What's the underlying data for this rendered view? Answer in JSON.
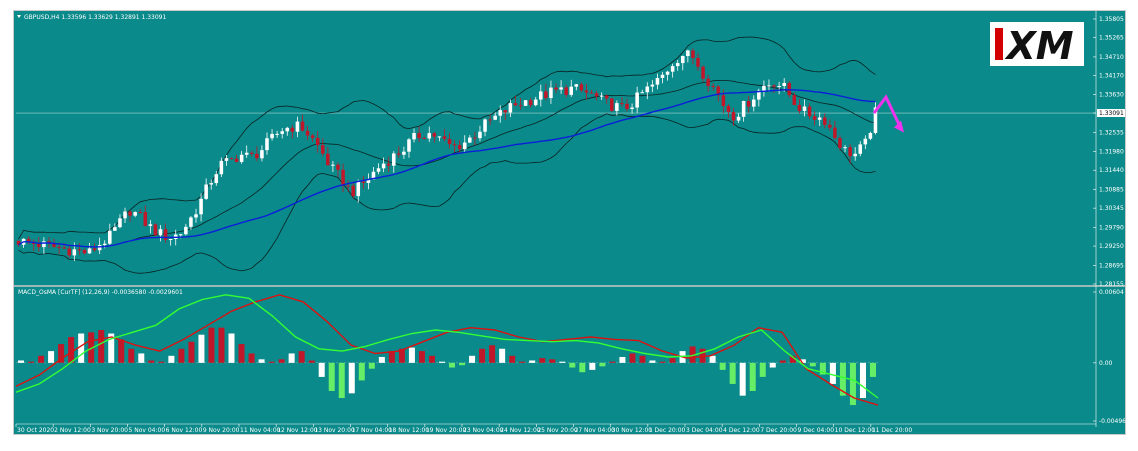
{
  "header": {
    "main_label": "GBPUSD,H4  1.33596 1.33629 1.32891 1.33091",
    "macd_label": "MACD_OsMA [CurTF] (12,26,9) -0.0036580 -0.0029601"
  },
  "logo": {
    "text": "XM"
  },
  "chart_data": [
    {
      "type": "candlestick",
      "symbol": "GBPUSD",
      "timeframe": "H4",
      "ohlc_last": {
        "open": 1.33596,
        "high": 1.33629,
        "low": 1.32891,
        "close": 1.33091
      },
      "current_price_label": "1.33091",
      "ylim": [
        1.28155,
        1.35805
      ],
      "y_ticks": [
        "1.35805",
        "1.35265",
        "1.34710",
        "1.34170",
        "1.33630",
        "1.33091",
        "1.32535",
        "1.31980",
        "1.31440",
        "1.30885",
        "1.30345",
        "1.29790",
        "1.29250",
        "1.28695",
        "1.28155"
      ],
      "x_ticks": [
        "30 Oct 2020",
        "2 Nov 12:00",
        "3 Nov 20:00",
        "5 Nov 04:00",
        "6 Nov 12:00",
        "9 Nov 20:00",
        "11 Nov 04:00",
        "12 Nov 12:00",
        "13 Nov 20:00",
        "17 Nov 04:00",
        "18 Nov 12:00",
        "19 Nov 20:00",
        "23 Nov 04:00",
        "24 Nov 12:00",
        "25 Nov 20:00",
        "27 Nov 04:00",
        "30 Nov 12:00",
        "1 Dec 20:00",
        "3 Dec 04:00",
        "4 Dec 12:00",
        "7 Dec 20:00",
        "9 Dec 04:00",
        "10 Dec 12:00",
        "11 Dec 20:00"
      ],
      "close_path": [
        1.294,
        1.2935,
        1.293,
        1.2925,
        1.292,
        1.2915,
        1.291,
        1.2905,
        1.293,
        1.295,
        1.299,
        1.303,
        1.301,
        1.298,
        1.296,
        1.295,
        1.296,
        1.3,
        1.305,
        1.311,
        1.316,
        1.317,
        1.319,
        1.318,
        1.32,
        1.323,
        1.326,
        1.327,
        1.327,
        1.324,
        1.32,
        1.315,
        1.312,
        1.308,
        1.31,
        1.313,
        1.316,
        1.318,
        1.32,
        1.323,
        1.325,
        1.325,
        1.323,
        1.321,
        1.322,
        1.324,
        1.327,
        1.329,
        1.331,
        1.333,
        1.334,
        1.335,
        1.336,
        1.337,
        1.3375,
        1.338,
        1.337,
        1.336,
        1.334,
        1.333,
        1.332,
        1.334,
        1.337,
        1.339,
        1.342,
        1.346,
        1.348,
        1.347,
        1.342,
        1.338,
        1.333,
        1.33,
        1.333,
        1.336,
        1.339,
        1.34,
        1.338,
        1.334,
        1.331,
        1.33,
        1.329,
        1.324,
        1.32,
        1.319,
        1.322,
        1.3309
      ],
      "projection": [
        1.3309,
        1.3355,
        1.327
      ]
    },
    {
      "type": "histogram+line",
      "name": "MACD_OsMA",
      "params": "(12,26,9)",
      "values_label": [
        "-0.0036580",
        "-0.0029601"
      ],
      "ylim": [
        -0.00496,
        0.00604
      ],
      "y_ticks": [
        "0.00604",
        "0.00",
        "-0.00496"
      ],
      "histogram": [
        0.0002,
        0.0001,
        0.0006,
        0.001,
        0.0016,
        0.0022,
        0.0025,
        0.0026,
        0.0028,
        0.0025,
        0.002,
        0.0012,
        0.0008,
        0.0002,
        0.0001,
        0.0006,
        0.0012,
        0.0018,
        0.0024,
        0.003,
        0.003,
        0.0025,
        0.0016,
        0.0008,
        0.0003,
        0.0001,
        0.0003,
        0.0008,
        0.001,
        0.0002,
        -0.0012,
        -0.0024,
        -0.003,
        -0.0026,
        -0.0015,
        -0.0005,
        0.0005,
        0.001,
        0.0012,
        0.0013,
        0.001,
        0.0006,
        0.0001,
        -0.0004,
        -0.0002,
        0.0006,
        0.0012,
        0.0015,
        0.0012,
        0.0006,
        0.0001,
        0.0002,
        0.0004,
        0.0003,
        0.0001,
        -0.0004,
        -0.0008,
        -0.0006,
        -0.0003,
        0.0001,
        0.0005,
        0.0008,
        0.0006,
        0.0002,
        0.0001,
        0.0004,
        0.001,
        0.0014,
        0.0012,
        0.0006,
        -0.0006,
        -0.0018,
        -0.0028,
        -0.0024,
        -0.0012,
        -0.0004,
        0.0002,
        0.0006,
        0.0003,
        -0.0003,
        -0.001,
        -0.0018,
        -0.0028,
        -0.0036,
        -0.003,
        -0.0012
      ],
      "line_red": [
        -0.002,
        -0.001,
        0.0005,
        0.0018,
        0.0022,
        0.0015,
        0.001,
        0.002,
        0.0032,
        0.0044,
        0.0052,
        0.0058,
        0.0052,
        0.0035,
        0.0015,
        0.0008,
        0.001,
        0.0018,
        0.0026,
        0.003,
        0.0028,
        0.0022,
        0.0018,
        0.002,
        0.0022,
        0.002,
        0.0019,
        0.001,
        0.0004,
        0.0006,
        0.0015,
        0.003,
        0.0026,
        -0.0005,
        -0.0018,
        -0.003,
        -0.0036
      ],
      "line_green": [
        -0.0025,
        -0.0018,
        -0.0005,
        0.001,
        0.002,
        0.0026,
        0.0032,
        0.0046,
        0.0054,
        0.0058,
        0.0055,
        0.004,
        0.0022,
        0.0012,
        0.001,
        0.0014,
        0.002,
        0.0025,
        0.0028,
        0.0026,
        0.0023,
        0.002,
        0.0019,
        0.0018,
        0.0019,
        0.0017,
        0.0012,
        0.0008,
        0.0005,
        0.0006,
        0.0012,
        0.0022,
        0.0028,
        0.001,
        -0.0005,
        -0.001,
        -0.0015,
        -0.003
      ]
    }
  ],
  "colors": {
    "background": "#0a8a8a",
    "bull_candle": "#ffffff",
    "bear_candle": "#c0182a",
    "ma_line": "#0a20d8",
    "bands": "#0b2222",
    "hist_pos": "#c0182a",
    "hist_neg": "#66ee66",
    "hist_alt": "#ffffff",
    "macd_red": "#dd1111",
    "signal_green": "#33ff33",
    "projection": "#ee33ee"
  }
}
